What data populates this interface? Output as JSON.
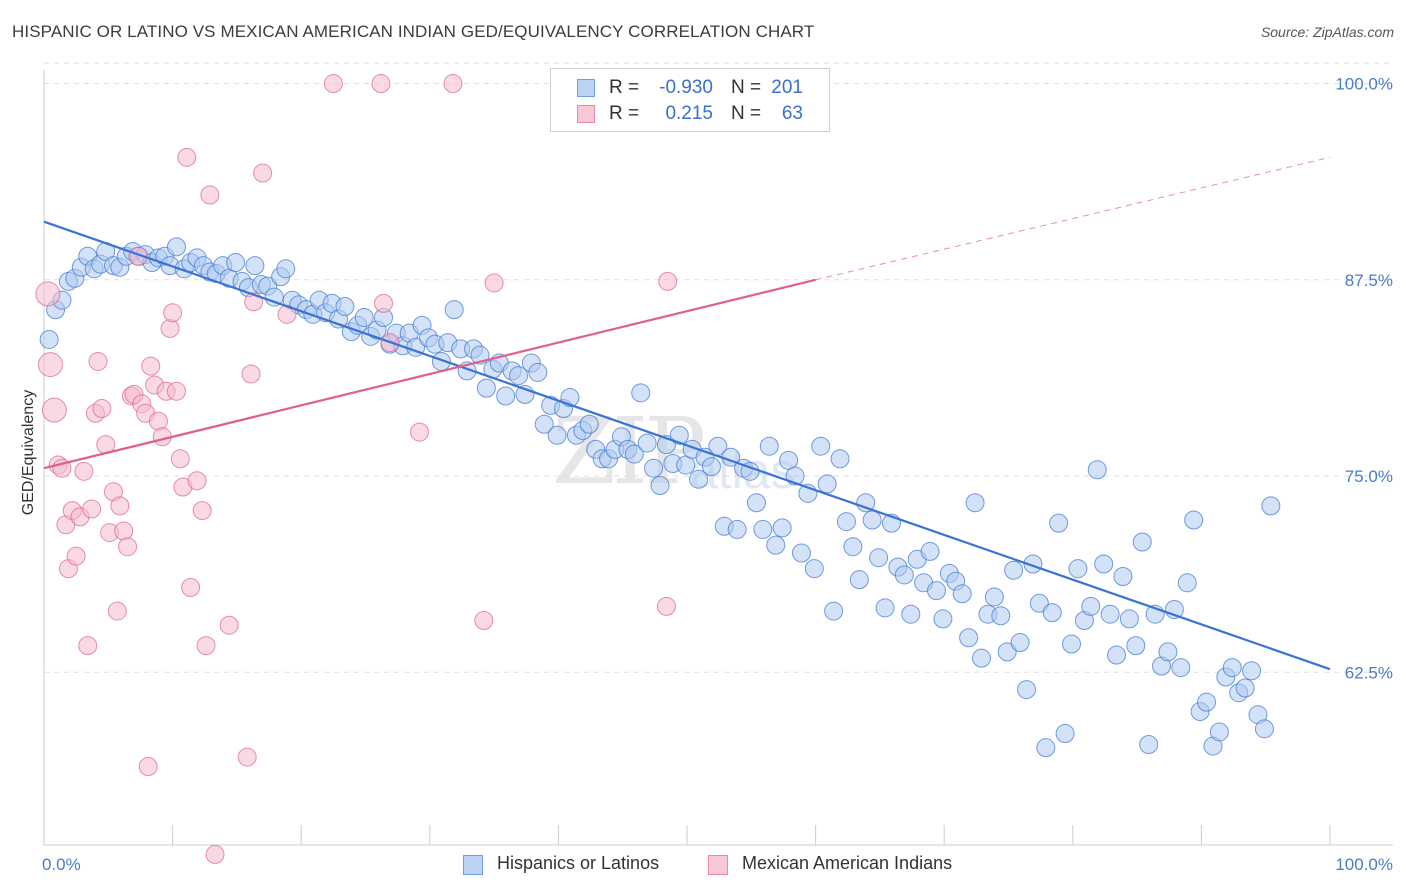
{
  "header": {
    "title": "HISPANIC OR LATINO VS MEXICAN AMERICAN INDIAN GED/EQUIVALENCY CORRELATION CHART",
    "source": "Source: ZipAtlas.com"
  },
  "watermark": {
    "part1": "ZIP",
    "part2": "atlas"
  },
  "legend": {
    "rows": [
      {
        "r_label": "R =",
        "r_value": "-0.930",
        "n_label": "N =",
        "n_value": "201",
        "color": "#6f9fe0",
        "fill": "#bcd3f3"
      },
      {
        "r_label": "R =",
        "r_value": "0.215",
        "n_label": "N =",
        "n_value": "63",
        "color": "#e88aa8",
        "fill": "#f7c7d6"
      }
    ]
  },
  "bottom_legend": {
    "items": [
      {
        "label": "Hispanics or Latinos",
        "color": "#6f9fe0",
        "fill": "#bcd3f3"
      },
      {
        "label": "Mexican American Indians",
        "color": "#e88aa8",
        "fill": "#f7c7d6"
      }
    ]
  },
  "chart_data": {
    "type": "scatter",
    "title": "HISPANIC OR LATINO VS MEXICAN AMERICAN INDIAN GED/EQUIVALENCY CORRELATION CHART",
    "xlabel": "",
    "ylabel": "GED/Equivalency",
    "xlim": [
      0,
      100
    ],
    "ylim": [
      51.5,
      101.5
    ],
    "x_tick_labels": [
      "0.0%",
      "100.0%"
    ],
    "y_ticks": [
      62.5,
      75.0,
      87.5,
      100.0
    ],
    "y_tick_labels": [
      "62.5%",
      "75.0%",
      "87.5%",
      "100.0%"
    ],
    "grid": true,
    "series": [
      {
        "name": "Hispanics or Latinos",
        "color": "#3a73d4",
        "point_fill": "#aecbf0",
        "R": -0.93,
        "N": 201,
        "trend": {
          "x": [
            0,
            100
          ],
          "y": [
            91.2,
            62.7
          ],
          "dashed_extension": false
        },
        "points": [
          [
            0.4,
            83.7
          ],
          [
            0.9,
            85.6
          ],
          [
            1.4,
            86.2
          ],
          [
            1.9,
            87.4
          ],
          [
            2.4,
            87.6
          ],
          [
            2.9,
            88.3
          ],
          [
            3.4,
            89.0
          ],
          [
            3.9,
            88.2
          ],
          [
            4.4,
            88.5
          ],
          [
            4.8,
            89.3
          ],
          [
            5.4,
            88.4
          ],
          [
            5.9,
            88.3
          ],
          [
            6.4,
            89.0
          ],
          [
            6.9,
            89.3
          ],
          [
            7.4,
            89.0
          ],
          [
            7.9,
            89.1
          ],
          [
            8.4,
            88.6
          ],
          [
            8.9,
            88.9
          ],
          [
            9.4,
            89.0
          ],
          [
            9.8,
            88.4
          ],
          [
            10.3,
            89.6
          ],
          [
            10.9,
            88.2
          ],
          [
            11.4,
            88.6
          ],
          [
            11.9,
            88.9
          ],
          [
            12.4,
            88.4
          ],
          [
            12.9,
            88.0
          ],
          [
            13.4,
            87.9
          ],
          [
            13.9,
            88.4
          ],
          [
            14.4,
            87.6
          ],
          [
            14.9,
            88.6
          ],
          [
            15.4,
            87.4
          ],
          [
            15.9,
            87.0
          ],
          [
            16.4,
            88.4
          ],
          [
            16.9,
            87.2
          ],
          [
            17.4,
            87.1
          ],
          [
            17.9,
            86.4
          ],
          [
            18.4,
            87.7
          ],
          [
            18.8,
            88.2
          ],
          [
            19.3,
            86.2
          ],
          [
            19.8,
            85.9
          ],
          [
            20.4,
            85.6
          ],
          [
            20.9,
            85.3
          ],
          [
            21.4,
            86.2
          ],
          [
            21.9,
            85.4
          ],
          [
            22.4,
            86.0
          ],
          [
            22.9,
            85.0
          ],
          [
            23.4,
            85.8
          ],
          [
            23.9,
            84.2
          ],
          [
            24.4,
            84.6
          ],
          [
            24.9,
            85.1
          ],
          [
            25.4,
            83.9
          ],
          [
            25.9,
            84.3
          ],
          [
            26.4,
            85.1
          ],
          [
            26.9,
            83.4
          ],
          [
            27.4,
            84.1
          ],
          [
            27.9,
            83.3
          ],
          [
            28.4,
            84.1
          ],
          [
            28.9,
            83.2
          ],
          [
            29.4,
            84.6
          ],
          [
            29.9,
            83.8
          ],
          [
            30.4,
            83.4
          ],
          [
            30.9,
            82.3
          ],
          [
            31.4,
            83.5
          ],
          [
            31.9,
            85.6
          ],
          [
            32.4,
            83.1
          ],
          [
            32.9,
            81.7
          ],
          [
            33.4,
            83.1
          ],
          [
            33.9,
            82.7
          ],
          [
            34.4,
            80.6
          ],
          [
            34.9,
            81.8
          ],
          [
            35.4,
            82.2
          ],
          [
            35.9,
            80.1
          ],
          [
            36.4,
            81.7
          ],
          [
            36.9,
            81.4
          ],
          [
            37.4,
            80.2
          ],
          [
            37.9,
            82.2
          ],
          [
            38.4,
            81.6
          ],
          [
            38.9,
            78.3
          ],
          [
            39.4,
            79.5
          ],
          [
            39.9,
            77.6
          ],
          [
            40.4,
            79.3
          ],
          [
            40.9,
            80.0
          ],
          [
            41.4,
            77.6
          ],
          [
            41.9,
            77.9
          ],
          [
            42.4,
            78.3
          ],
          [
            42.9,
            76.7
          ],
          [
            43.4,
            76.1
          ],
          [
            43.9,
            76.1
          ],
          [
            44.4,
            76.7
          ],
          [
            44.9,
            77.5
          ],
          [
            45.4,
            76.7
          ],
          [
            45.9,
            76.4
          ],
          [
            46.4,
            80.3
          ],
          [
            46.9,
            77.1
          ],
          [
            47.4,
            75.5
          ],
          [
            47.9,
            74.4
          ],
          [
            48.4,
            77.0
          ],
          [
            48.9,
            75.8
          ],
          [
            49.4,
            77.6
          ],
          [
            49.9,
            75.7
          ],
          [
            50.4,
            76.7
          ],
          [
            50.9,
            74.8
          ],
          [
            51.4,
            76.2
          ],
          [
            51.9,
            75.6
          ],
          [
            52.4,
            76.9
          ],
          [
            52.9,
            71.8
          ],
          [
            53.4,
            76.2
          ],
          [
            53.9,
            71.6
          ],
          [
            54.4,
            75.5
          ],
          [
            54.9,
            75.3
          ],
          [
            55.4,
            73.3
          ],
          [
            55.9,
            71.6
          ],
          [
            56.4,
            76.9
          ],
          [
            56.9,
            70.6
          ],
          [
            57.4,
            71.7
          ],
          [
            57.9,
            76.0
          ],
          [
            58.4,
            75.0
          ],
          [
            58.9,
            70.1
          ],
          [
            59.4,
            73.9
          ],
          [
            59.9,
            69.1
          ],
          [
            60.4,
            76.9
          ],
          [
            60.9,
            74.5
          ],
          [
            61.4,
            66.4
          ],
          [
            61.9,
            76.1
          ],
          [
            62.4,
            72.1
          ],
          [
            62.9,
            70.5
          ],
          [
            63.4,
            68.4
          ],
          [
            63.9,
            73.3
          ],
          [
            64.4,
            72.2
          ],
          [
            64.9,
            69.8
          ],
          [
            65.4,
            66.6
          ],
          [
            65.9,
            72.0
          ],
          [
            66.4,
            69.2
          ],
          [
            66.9,
            68.7
          ],
          [
            67.4,
            66.2
          ],
          [
            67.9,
            69.7
          ],
          [
            68.4,
            68.2
          ],
          [
            68.9,
            70.2
          ],
          [
            69.4,
            67.7
          ],
          [
            69.9,
            65.9
          ],
          [
            70.4,
            68.8
          ],
          [
            70.9,
            68.3
          ],
          [
            71.4,
            67.5
          ],
          [
            71.9,
            64.7
          ],
          [
            72.4,
            73.3
          ],
          [
            72.9,
            63.4
          ],
          [
            73.4,
            66.2
          ],
          [
            73.9,
            67.3
          ],
          [
            74.4,
            66.1
          ],
          [
            74.9,
            63.8
          ],
          [
            75.4,
            69.0
          ],
          [
            75.9,
            64.4
          ],
          [
            76.4,
            61.4
          ],
          [
            76.9,
            69.4
          ],
          [
            77.4,
            66.9
          ],
          [
            77.9,
            57.7
          ],
          [
            78.4,
            66.3
          ],
          [
            78.9,
            72.0
          ],
          [
            79.4,
            58.6
          ],
          [
            79.9,
            64.3
          ],
          [
            80.4,
            69.1
          ],
          [
            80.9,
            65.8
          ],
          [
            81.4,
            66.7
          ],
          [
            81.9,
            75.4
          ],
          [
            82.4,
            69.4
          ],
          [
            82.9,
            66.2
          ],
          [
            83.4,
            63.6
          ],
          [
            83.9,
            68.6
          ],
          [
            84.4,
            65.9
          ],
          [
            84.9,
            64.2
          ],
          [
            85.4,
            70.8
          ],
          [
            85.9,
            57.9
          ],
          [
            86.4,
            66.2
          ],
          [
            86.9,
            62.9
          ],
          [
            87.4,
            63.8
          ],
          [
            87.9,
            66.5
          ],
          [
            88.4,
            62.8
          ],
          [
            88.9,
            68.2
          ],
          [
            89.4,
            72.2
          ],
          [
            89.9,
            60.0
          ],
          [
            90.4,
            60.6
          ],
          [
            90.9,
            57.8
          ],
          [
            91.4,
            58.7
          ],
          [
            91.9,
            62.2
          ],
          [
            92.4,
            62.8
          ],
          [
            92.9,
            61.2
          ],
          [
            93.4,
            61.5
          ],
          [
            93.9,
            62.6
          ],
          [
            94.4,
            59.8
          ],
          [
            94.9,
            58.9
          ],
          [
            95.4,
            73.1
          ]
        ]
      },
      {
        "name": "Mexican American Indians",
        "color": "#e0608a",
        "point_fill": "#f4bccd",
        "R": 0.215,
        "N": 63,
        "trend": {
          "x": [
            0,
            60
          ],
          "y": [
            75.5,
            87.5
          ],
          "dashed_extension": true,
          "dashed_to": [
            100,
            95.3
          ]
        },
        "points": [
          [
            0.3,
            86.6
          ],
          [
            0.5,
            82.1
          ],
          [
            0.8,
            79.2
          ],
          [
            1.1,
            75.7
          ],
          [
            1.4,
            75.5
          ],
          [
            1.7,
            71.9
          ],
          [
            1.9,
            69.1
          ],
          [
            2.2,
            72.8
          ],
          [
            2.5,
            69.9
          ],
          [
            2.8,
            72.4
          ],
          [
            3.1,
            75.3
          ],
          [
            3.4,
            64.2
          ],
          [
            3.7,
            72.9
          ],
          [
            4.0,
            79.0
          ],
          [
            4.2,
            82.3
          ],
          [
            4.5,
            79.3
          ],
          [
            4.8,
            77.0
          ],
          [
            5.1,
            71.4
          ],
          [
            5.4,
            74.0
          ],
          [
            5.7,
            66.4
          ],
          [
            5.9,
            73.1
          ],
          [
            6.2,
            71.5
          ],
          [
            6.5,
            70.5
          ],
          [
            6.8,
            80.1
          ],
          [
            7.0,
            80.2
          ],
          [
            7.3,
            89.0
          ],
          [
            7.6,
            79.6
          ],
          [
            7.9,
            79.0
          ],
          [
            8.1,
            56.5
          ],
          [
            8.3,
            82.0
          ],
          [
            8.6,
            80.8
          ],
          [
            8.9,
            78.5
          ],
          [
            9.2,
            77.5
          ],
          [
            9.5,
            80.4
          ],
          [
            9.8,
            84.4
          ],
          [
            10.0,
            85.4
          ],
          [
            10.3,
            80.4
          ],
          [
            10.6,
            76.1
          ],
          [
            10.8,
            74.3
          ],
          [
            11.1,
            95.3
          ],
          [
            11.4,
            67.9
          ],
          [
            11.9,
            74.7
          ],
          [
            12.3,
            72.8
          ],
          [
            12.6,
            64.2
          ],
          [
            12.9,
            92.9
          ],
          [
            13.3,
            50.9
          ],
          [
            14.4,
            65.5
          ],
          [
            15.8,
            57.1
          ],
          [
            16.1,
            81.5
          ],
          [
            16.3,
            86.1
          ],
          [
            17.0,
            94.3
          ],
          [
            18.9,
            85.3
          ],
          [
            22.5,
            100.0
          ],
          [
            26.2,
            100.0
          ],
          [
            26.4,
            86.0
          ],
          [
            26.9,
            83.5
          ],
          [
            29.2,
            77.8
          ],
          [
            31.8,
            100.0
          ],
          [
            34.2,
            65.8
          ],
          [
            35.0,
            87.3
          ],
          [
            48.4,
            66.7
          ],
          [
            48.5,
            87.4
          ]
        ]
      }
    ]
  }
}
